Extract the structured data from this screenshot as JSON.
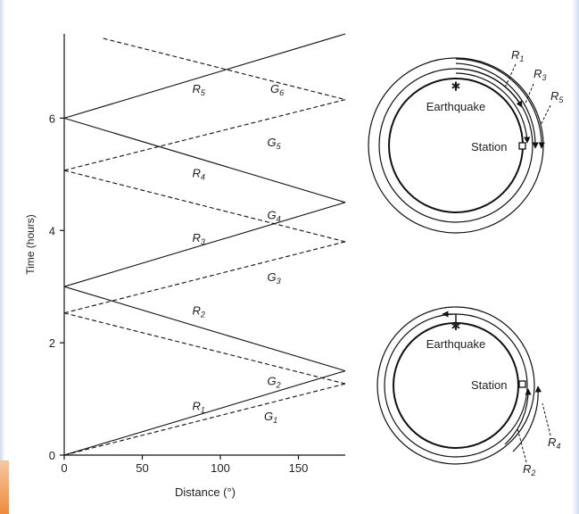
{
  "chart_data": {
    "type": "line",
    "xlabel": "Distance (°)",
    "ylabel": "Time (hours)",
    "xlim": [
      0,
      180
    ],
    "ylim": [
      0,
      7.5
    ],
    "x_ticks": [
      0,
      50,
      100,
      150
    ],
    "y_ticks": [
      0,
      2,
      4,
      6
    ],
    "grid": false,
    "series": [
      {
        "name": "R1",
        "style": "solid",
        "x": [
          0,
          180
        ],
        "y": [
          0,
          1.5
        ]
      },
      {
        "name": "R2",
        "style": "solid",
        "x": [
          0,
          180
        ],
        "y": [
          3.0,
          1.5
        ]
      },
      {
        "name": "R3",
        "style": "solid",
        "x": [
          0,
          180
        ],
        "y": [
          3.0,
          4.5
        ]
      },
      {
        "name": "R4",
        "style": "solid",
        "x": [
          0,
          180
        ],
        "y": [
          6.0,
          4.5
        ]
      },
      {
        "name": "R5",
        "style": "solid",
        "x": [
          0,
          180
        ],
        "y": [
          6.0,
          7.5
        ]
      },
      {
        "name": "G1",
        "style": "dashed",
        "x": [
          0,
          180
        ],
        "y": [
          0,
          1.27
        ]
      },
      {
        "name": "G2",
        "style": "dashed",
        "x": [
          0,
          180
        ],
        "y": [
          2.53,
          1.27
        ]
      },
      {
        "name": "G3",
        "style": "dashed",
        "x": [
          0,
          180
        ],
        "y": [
          2.53,
          3.8
        ]
      },
      {
        "name": "G4",
        "style": "dashed",
        "x": [
          0,
          180
        ],
        "y": [
          5.07,
          3.8
        ]
      },
      {
        "name": "G5",
        "style": "dashed",
        "x": [
          0,
          180
        ],
        "y": [
          5.07,
          6.33
        ]
      },
      {
        "name": "G6",
        "style": "dashed",
        "x": [
          25,
          180
        ],
        "y": [
          7.42,
          6.33
        ]
      }
    ],
    "annotations": [
      {
        "base": "R",
        "sub": "5",
        "x": 82,
        "y": 6.45
      },
      {
        "base": "G",
        "sub": "6",
        "x": 132,
        "y": 6.45
      },
      {
        "base": "G",
        "sub": "5",
        "x": 130,
        "y": 5.5
      },
      {
        "base": "R",
        "sub": "4",
        "x": 82,
        "y": 4.95
      },
      {
        "base": "G",
        "sub": "4",
        "x": 130,
        "y": 4.2
      },
      {
        "base": "R",
        "sub": "3",
        "x": 82,
        "y": 3.8
      },
      {
        "base": "G",
        "sub": "3",
        "x": 130,
        "y": 3.1
      },
      {
        "base": "R",
        "sub": "2",
        "x": 82,
        "y": 2.5
      },
      {
        "base": "G",
        "sub": "2",
        "x": 130,
        "y": 1.25
      },
      {
        "base": "R",
        "sub": "1",
        "x": 82,
        "y": 0.8
      },
      {
        "base": "G",
        "sub": "1",
        "x": 128,
        "y": 0.62
      }
    ]
  },
  "diagram": {
    "earthquake_label": "Earthquake",
    "station_label": "Station",
    "top_arrows": [
      {
        "base": "R",
        "sub": "1"
      },
      {
        "base": "R",
        "sub": "3"
      },
      {
        "base": "R",
        "sub": "5"
      }
    ],
    "bottom_arrows": [
      {
        "base": "R",
        "sub": "2"
      },
      {
        "base": "R",
        "sub": "4"
      }
    ]
  }
}
